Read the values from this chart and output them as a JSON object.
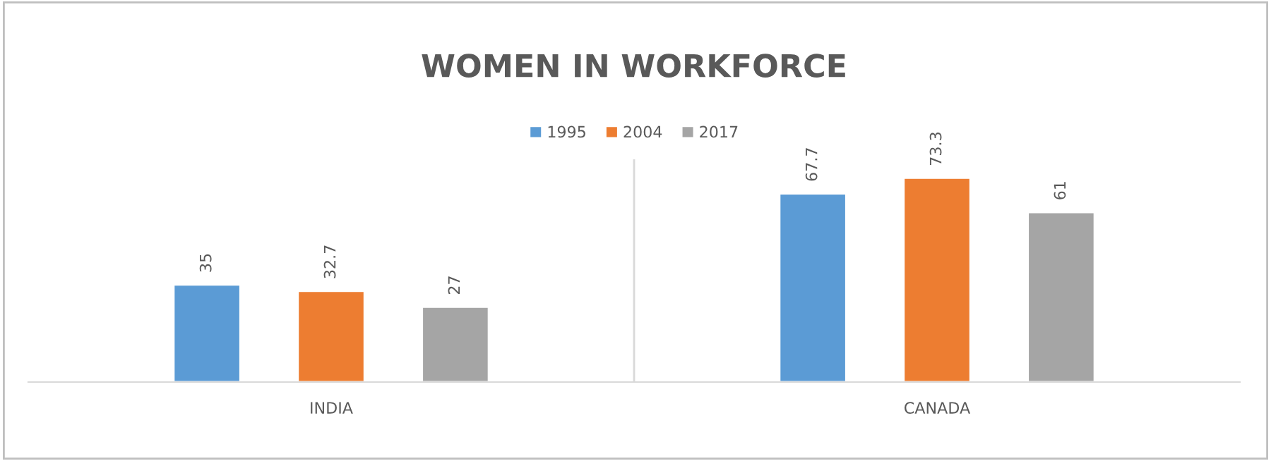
{
  "chart_data": {
    "type": "bar",
    "title": "WOMEN IN WORKFORCE",
    "categories": [
      "INDIA",
      "CANADA"
    ],
    "series": [
      {
        "name": "1995",
        "color": "#5b9bd5",
        "values": [
          35,
          67.7
        ]
      },
      {
        "name": "2004",
        "color": "#ed7d31",
        "values": [
          32.7,
          73.3
        ]
      },
      {
        "name": "2017",
        "color": "#a5a5a5",
        "values": [
          27,
          61
        ]
      }
    ],
    "ylim": [
      0,
      80
    ],
    "tick_labels": "x",
    "data_labels": true,
    "grid": "x",
    "legend": "top"
  }
}
